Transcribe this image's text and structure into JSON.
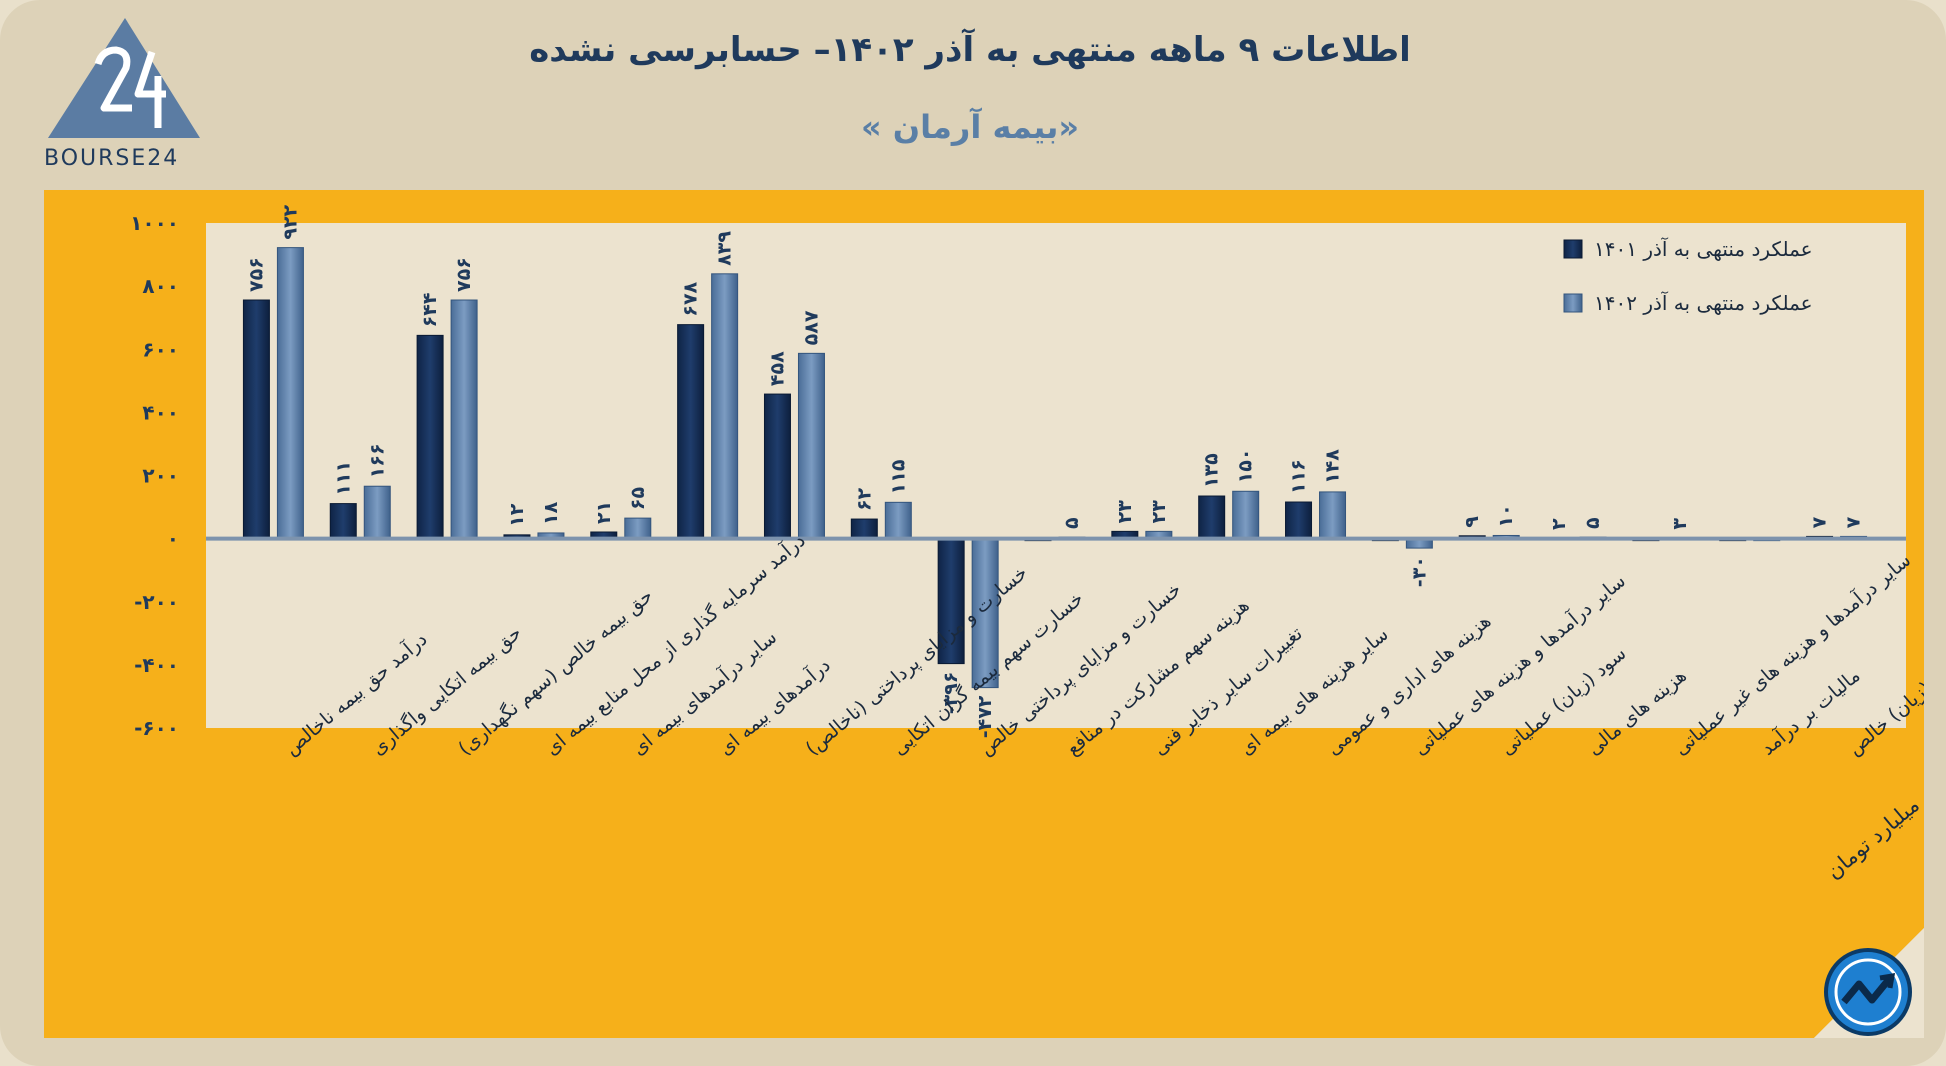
{
  "header": {
    "title": "اطلاعات ۹  ماهه منتهی به آذر ۱۴۰۲– حسابرسی نشده",
    "subtitle": "«بیمه آرمان »",
    "brand": "BOURSE24"
  },
  "footer": {
    "unit_note": "ارقام به میلیارد تومان"
  },
  "colors": {
    "orange": "#f6b01a",
    "plot_bg": "#ece3cf",
    "series_1401": "#17305a",
    "series_1402": "#5c7ea8",
    "label": "#1f3a5c"
  },
  "chart_data": {
    "type": "bar",
    "title": "اطلاعات ۹  ماهه منتهی به آذر ۱۴۰۲– حسابرسی نشده",
    "subtitle": "«بیمه آرمان »",
    "ylim": [
      -600,
      1000
    ],
    "yticks": [
      1000,
      800,
      600,
      400,
      200,
      0,
      -200,
      -400,
      -600
    ],
    "ytick_labels": [
      "۱۰۰۰",
      "۸۰۰",
      "۶۰۰",
      "۴۰۰",
      "۲۰۰",
      "۰",
      "-۲۰۰",
      "-۴۰۰",
      "-۶۰۰"
    ],
    "legend_position": "top-right",
    "grid": false,
    "categories": [
      "درآمد حق بیمه ناخالص",
      "حق بیمه اتکایی واگذاری",
      "حق بیمه خالص (سهم نگهداری)",
      "درآمد سرمایه گذاری از محل منابع بیمه ای",
      "سایر درآمدهای بیمه ای",
      "درآمدهای بیمه ای",
      "خسارت و مزایای پرداختی (ناخالص)",
      "خسارت سهم بیمه گران اتکایی",
      "خسارت و مزایای پرداختی خالص",
      "هزینه سهم مشارکت در منافع",
      "تغییرات سایر ذخایر فنی",
      "سایر هزینه های بیمه ای",
      "هزینه های اداری و عمومی",
      "سایر درآمدها و هزینه های عملیاتی",
      "سود (زیان) عملیاتی",
      "هزینه های مالی",
      "سایر درآمدها و هزینه های غیر عملیاتی",
      "مالیات بر درآمد",
      "سود (زیان) خالص"
    ],
    "series": [
      {
        "name": "عملکرد منتهی به آذر ۱۴۰۱",
        "values": [
          756,
          111,
          644,
          12,
          21,
          678,
          458,
          62,
          -396,
          0,
          23,
          135,
          116,
          0,
          9,
          2,
          0,
          0,
          7
        ],
        "labels": [
          "۷۵۶",
          "۱۱۱",
          "۶۴۴",
          "۱۲",
          "۲۱",
          "۶۷۸",
          "۴۵۸",
          "۶۲",
          "-۳۹۶",
          "",
          "۲۳",
          "۱۳۵",
          "۱۱۶",
          "",
          "۹",
          "۲",
          "",
          "",
          "۷"
        ]
      },
      {
        "name": "عملکرد منتهی به آذر ۱۴۰۲",
        "values": [
          922,
          166,
          756,
          18,
          65,
          839,
          587,
          115,
          -472,
          5,
          23,
          150,
          148,
          -30,
          10,
          5,
          3,
          0,
          7
        ],
        "labels": [
          "۹۲۲",
          "۱۶۶",
          "۷۵۶",
          "۱۸",
          "۶۵",
          "۸۳۹",
          "۵۸۷",
          "۱۱۵",
          "-۴۷۲",
          "۵",
          "۲۳",
          "۱۵۰",
          "۱۴۸",
          "-۳۰",
          "۱۰",
          "۵",
          "۳",
          "",
          "۷"
        ]
      }
    ]
  }
}
